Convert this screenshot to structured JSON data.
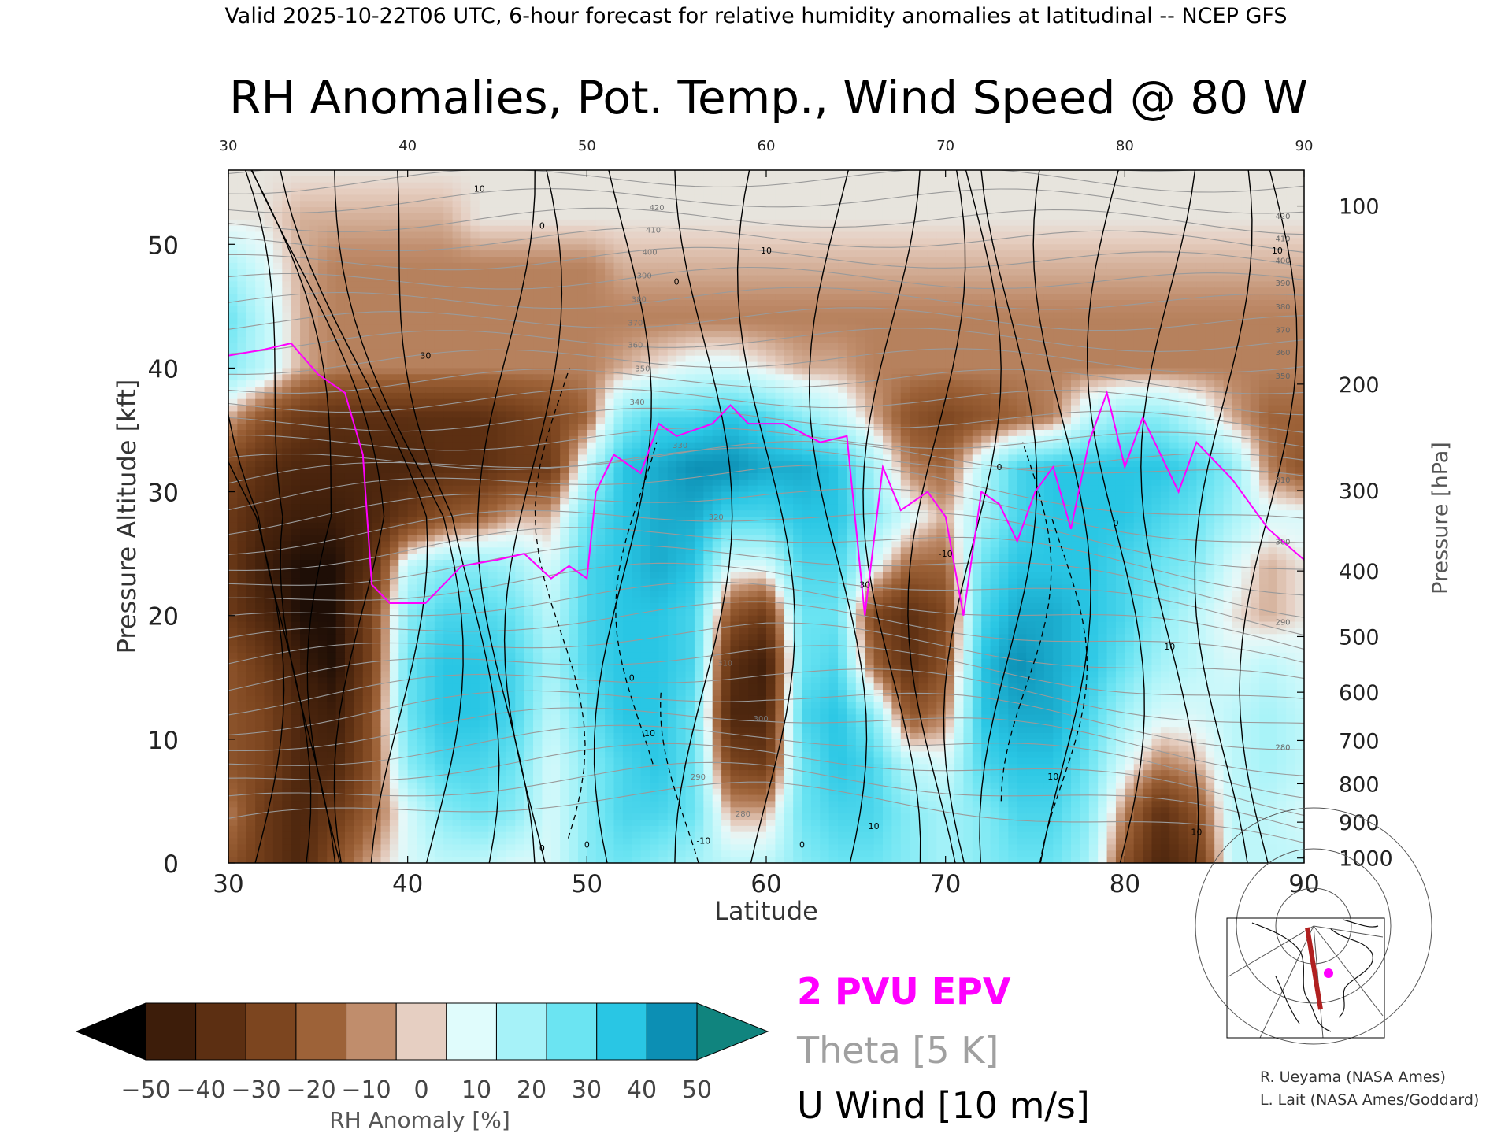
{
  "header": {
    "valid_line": "Valid 2025-10-22T06 UTC, 6-hour forecast for relative humidity anomalies at latitudinal -- NCEP GFS",
    "title": "RH Anomalies, Pot. Temp., Wind Speed @ 80 W"
  },
  "chart_data": {
    "type": "heatmap",
    "title": "RH Anomalies, Pot. Temp., Wind Speed @ 80 W",
    "xlabel": "Latitude",
    "ylabel": "Pressure Altitude [kft]",
    "ylabel_right": "Pressure [hPa]",
    "xlim": [
      30,
      90
    ],
    "ylim": [
      0,
      56
    ],
    "x_ticks": [
      30,
      40,
      50,
      60,
      70,
      80,
      90
    ],
    "x_tick_labels": [
      "30",
      "40",
      "50",
      "60",
      "70",
      "80",
      "90"
    ],
    "y_ticks": [
      0,
      10,
      20,
      30,
      40,
      50
    ],
    "y_tick_labels": [
      "0",
      "10",
      "20",
      "30",
      "40",
      "50"
    ],
    "right_axis_ticks": [
      {
        "kft": 0.4,
        "label": "1000"
      },
      {
        "kft": 3.3,
        "label": "900"
      },
      {
        "kft": 6.4,
        "label": "800"
      },
      {
        "kft": 9.9,
        "label": "700"
      },
      {
        "kft": 13.8,
        "label": "600"
      },
      {
        "kft": 18.3,
        "label": "500"
      },
      {
        "kft": 23.6,
        "label": "400"
      },
      {
        "kft": 30.1,
        "label": "300"
      },
      {
        "kft": 38.7,
        "label": "200"
      },
      {
        "kft": 53.1,
        "label": "100"
      }
    ],
    "theta_labels_right": [
      "420",
      "410",
      "400",
      "390",
      "380",
      "370",
      "360",
      "350",
      "310",
      "300",
      "290",
      "280"
    ],
    "theta_labels_inner": [
      "420",
      "410",
      "400",
      "390",
      "380",
      "370",
      "360",
      "350",
      "340",
      "330",
      "320",
      "310",
      "300",
      "290",
      "280"
    ],
    "wind_labels": [
      "0",
      "10",
      "30",
      "-10"
    ],
    "heat_rows_kft": [
      0,
      4,
      8,
      12,
      16,
      20,
      24,
      28,
      32,
      36,
      40,
      44,
      48,
      52,
      56
    ],
    "heat_cols_lat": [
      30,
      32,
      34,
      36,
      38,
      40,
      42,
      44,
      46,
      48,
      50,
      52,
      54,
      56,
      58,
      60,
      62,
      64,
      66,
      68,
      70,
      72,
      74,
      76,
      78,
      80,
      82,
      84,
      86,
      88,
      90
    ],
    "heat_values": [
      [
        -20,
        -30,
        -40,
        -20,
        -5,
        5,
        10,
        10,
        5,
        5,
        20,
        25,
        20,
        15,
        10,
        10,
        20,
        25,
        25,
        20,
        15,
        20,
        25,
        25,
        15,
        -20,
        -40,
        -30,
        10,
        10,
        10
      ],
      [
        -10,
        -30,
        -40,
        -30,
        -15,
        5,
        20,
        25,
        20,
        5,
        20,
        30,
        30,
        25,
        -5,
        -5,
        25,
        30,
        30,
        20,
        15,
        20,
        30,
        30,
        20,
        -10,
        -35,
        -20,
        10,
        10,
        5
      ],
      [
        -20,
        -25,
        -40,
        -40,
        -20,
        20,
        30,
        30,
        25,
        5,
        20,
        30,
        35,
        25,
        -25,
        -30,
        25,
        35,
        30,
        10,
        5,
        30,
        35,
        35,
        25,
        5,
        -10,
        -5,
        10,
        15,
        10
      ],
      [
        -20,
        -25,
        -40,
        -45,
        -20,
        25,
        35,
        35,
        30,
        10,
        25,
        35,
        35,
        25,
        -40,
        -40,
        30,
        35,
        20,
        -20,
        -10,
        35,
        40,
        40,
        30,
        15,
        5,
        5,
        10,
        15,
        10
      ],
      [
        -20,
        -30,
        -45,
        -50,
        -25,
        25,
        35,
        35,
        30,
        15,
        30,
        35,
        35,
        30,
        -35,
        -45,
        25,
        30,
        -15,
        -35,
        -20,
        35,
        45,
        40,
        35,
        25,
        15,
        10,
        5,
        10,
        5
      ],
      [
        -30,
        -40,
        -50,
        -50,
        -25,
        20,
        30,
        30,
        25,
        10,
        30,
        35,
        35,
        30,
        -20,
        -30,
        25,
        25,
        -25,
        -35,
        -25,
        30,
        40,
        40,
        35,
        30,
        20,
        10,
        0,
        -5,
        0
      ],
      [
        -30,
        -45,
        -50,
        -50,
        -35,
        10,
        20,
        20,
        15,
        5,
        30,
        35,
        40,
        35,
        5,
        5,
        30,
        30,
        5,
        -15,
        -15,
        25,
        35,
        35,
        35,
        30,
        25,
        20,
        5,
        -5,
        0
      ],
      [
        -30,
        -40,
        -45,
        -45,
        -40,
        -30,
        -20,
        -15,
        -5,
        -5,
        25,
        35,
        40,
        40,
        30,
        30,
        35,
        35,
        20,
        5,
        -5,
        15,
        30,
        35,
        35,
        35,
        30,
        25,
        15,
        5,
        5
      ],
      [
        -25,
        -35,
        -40,
        -40,
        -40,
        -40,
        -35,
        -35,
        -30,
        -30,
        10,
        35,
        40,
        45,
        45,
        40,
        40,
        35,
        15,
        -10,
        -15,
        10,
        30,
        35,
        35,
        35,
        35,
        30,
        20,
        -10,
        -20
      ],
      [
        -5,
        -20,
        -30,
        -35,
        -35,
        -35,
        -35,
        -35,
        -30,
        -25,
        -15,
        20,
        30,
        30,
        35,
        30,
        20,
        10,
        -5,
        -20,
        -25,
        -20,
        -15,
        -10,
        10,
        20,
        20,
        10,
        -5,
        -15,
        -15
      ],
      [
        20,
        10,
        -5,
        -10,
        -10,
        -10,
        -10,
        -10,
        -10,
        -10,
        -10,
        -5,
        0,
        5,
        5,
        0,
        -5,
        -5,
        -10,
        -10,
        -10,
        -10,
        -10,
        -10,
        -10,
        -10,
        -10,
        -10,
        -10,
        -10,
        -10
      ],
      [
        25,
        10,
        -5,
        -10,
        -10,
        -10,
        -10,
        -10,
        -10,
        -10,
        -10,
        -10,
        -10,
        -10,
        -10,
        -10,
        -10,
        -10,
        -10,
        -10,
        -10,
        -10,
        -10,
        -10,
        -10,
        -10,
        -10,
        -10,
        -10,
        -10,
        -10
      ],
      [
        15,
        5,
        -5,
        -10,
        -10,
        -10,
        -10,
        -10,
        -10,
        -10,
        -10,
        -5,
        -5,
        -5,
        -5,
        -5,
        -5,
        -5,
        -5,
        -5,
        -5,
        -5,
        -5,
        -5,
        -5,
        -5,
        -5,
        -5,
        -5,
        -5,
        -5
      ],
      [
        0,
        0,
        -5,
        -5,
        -5,
        -5,
        -5,
        0,
        0,
        0,
        0,
        0,
        0,
        0,
        0,
        0,
        0,
        0,
        0,
        0,
        0,
        0,
        0,
        0,
        0,
        0,
        0,
        0,
        0,
        0,
        0
      ],
      [
        0,
        0,
        0,
        0,
        0,
        0,
        0,
        0,
        0,
        0,
        0,
        0,
        0,
        0,
        0,
        0,
        0,
        0,
        0,
        0,
        0,
        0,
        0,
        0,
        0,
        0,
        0,
        0,
        0,
        0,
        0
      ]
    ],
    "epv_2pvu": {
      "name": "2 PVU EPV",
      "color": "#ff00ff",
      "x": [
        30,
        32,
        33.5,
        35,
        36.5,
        37.5,
        38,
        39,
        41,
        43,
        45,
        46.5,
        48,
        49,
        50,
        50.5,
        51.5,
        53,
        54,
        55,
        57,
        58,
        59,
        61,
        63,
        64.5,
        65.5,
        66.5,
        67.5,
        69,
        70,
        71,
        72,
        73,
        74,
        75,
        76,
        77,
        78,
        79,
        80,
        81,
        82,
        83,
        84,
        86,
        88,
        90
      ],
      "y": [
        41,
        41.5,
        42,
        39.5,
        38,
        33,
        22.5,
        21,
        21,
        24,
        24.5,
        25,
        23,
        24,
        23,
        30,
        33,
        31.5,
        35.5,
        34.5,
        35.5,
        37,
        35.5,
        35.5,
        34,
        34.5,
        20,
        32,
        28.5,
        30,
        28,
        20,
        30,
        29,
        26,
        30,
        32,
        27,
        34,
        38,
        32,
        36,
        33,
        30,
        34,
        31,
        27,
        24.5
      ]
    },
    "legend": {
      "colorbar_label": "RH Anomaly [%]",
      "colorbar_ticks": [
        "-50",
        "-40",
        "-30",
        "-20",
        "-10",
        "0",
        "10",
        "20",
        "30",
        "40",
        "50"
      ],
      "colorbar_colors": [
        "#3d1d0a",
        "#5c2f12",
        "#7c451f",
        "#9d6238",
        "#c08d6c",
        "#e6cfc2",
        "#e0fcfc",
        "#a6f2f8",
        "#6be4f2",
        "#29c6e4",
        "#0c8fb4"
      ],
      "colorbar_under": "#000000",
      "colorbar_over": "#10847e",
      "entries": [
        {
          "label": "2 PVU EPV",
          "color": "#ff00ff"
        },
        {
          "label": "Theta [5 K]",
          "color": "#a0a0a0"
        },
        {
          "label": "U Wind [10 m/s]",
          "color": "#000000"
        }
      ]
    }
  },
  "credits": {
    "line1": "R. Ueyama (NASA Ames)",
    "line2": "L. Lait (NASA Ames/Goddard)"
  }
}
